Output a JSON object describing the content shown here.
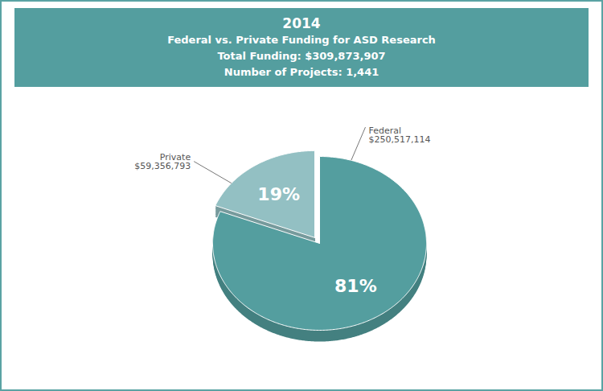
{
  "chart_data": {
    "type": "pie",
    "title": "2014",
    "subtitle": [
      "Federal vs. Private Funding for ASD Research",
      "Total Funding: $309,873,907",
      "Number of Projects: 1,441"
    ],
    "categories": [
      "Federal",
      "Private"
    ],
    "values": [
      81,
      19
    ],
    "value_labels": [
      "81%",
      "19%"
    ],
    "amounts": [
      250517114,
      59356793
    ],
    "amount_labels": [
      "$250,517,114",
      "$59,356,793"
    ],
    "colors": [
      "#549e9f",
      "#93c0c3"
    ],
    "data_labels": true
  }
}
